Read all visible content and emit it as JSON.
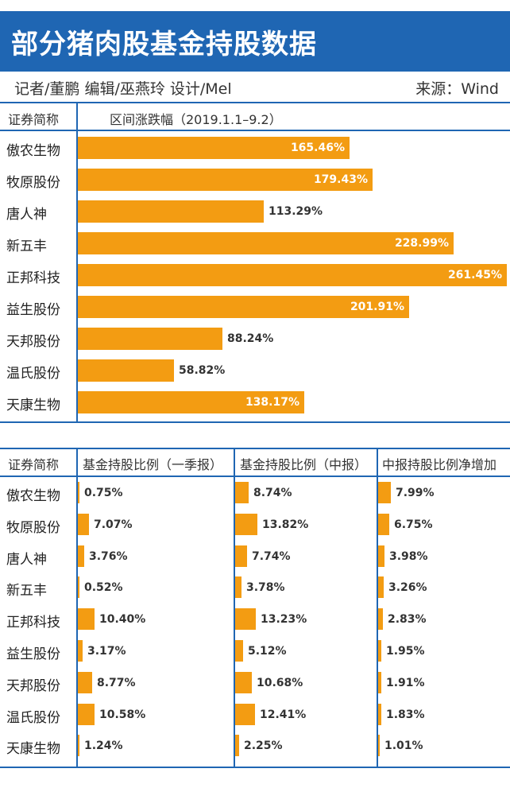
{
  "header": {
    "title": "部分猪肉股基金持股数据",
    "credit": "记者/董鹏  编辑/巫燕玲  设计/Mel",
    "source": "来源：Wind"
  },
  "colors": {
    "title_bg": "#1f66b3",
    "bar": "#f39c12",
    "rule": "#1f66b3"
  },
  "chart_data": [
    {
      "type": "bar",
      "orientation": "horizontal",
      "col_header_name": "证券简称",
      "col_header_value": "区间涨跌幅（2019.1.1–9.2）",
      "categories": [
        "傲农生物",
        "牧原股份",
        "唐人神",
        "新五丰",
        "正邦科技",
        "益生股份",
        "天邦股份",
        "温氏股份",
        "天康生物"
      ],
      "values": [
        165.46,
        179.43,
        113.29,
        228.99,
        261.45,
        201.91,
        88.24,
        58.82,
        138.17
      ],
      "value_labels": [
        "165.46%",
        "179.43%",
        "113.29%",
        "228.99%",
        "261.45%",
        "201.91%",
        "88.24%",
        "58.82%",
        "138.17%"
      ],
      "unit": "%"
    },
    {
      "type": "table",
      "col_header_name": "证券简称",
      "categories": [
        "傲农生物",
        "牧原股份",
        "唐人神",
        "新五丰",
        "正邦科技",
        "益生股份",
        "天邦股份",
        "温氏股份",
        "天康生物"
      ],
      "series": [
        {
          "name": "基金持股比例（一季报）",
          "values": [
            0.75,
            7.07,
            3.76,
            0.52,
            10.4,
            3.17,
            8.77,
            10.58,
            1.24
          ],
          "labels": [
            "0.75%",
            "7.07%",
            "3.76%",
            "0.52%",
            "10.40%",
            "3.17%",
            "8.77%",
            "10.58%",
            "1.24%"
          ]
        },
        {
          "name": "基金持股比例（中报）",
          "values": [
            8.74,
            13.82,
            7.74,
            3.78,
            13.23,
            5.12,
            10.68,
            12.41,
            2.25
          ],
          "labels": [
            "8.74%",
            "13.82%",
            "7.74%",
            "3.78%",
            "13.23%",
            "5.12%",
            "10.68%",
            "12.41%",
            "2.25%"
          ]
        },
        {
          "name": "中报持股比例净增加",
          "values": [
            7.99,
            6.75,
            3.98,
            3.26,
            2.83,
            1.95,
            1.91,
            1.83,
            1.01
          ],
          "labels": [
            "7.99%",
            "6.75%",
            "3.98%",
            "3.26%",
            "2.83%",
            "1.95%",
            "1.91%",
            "1.83%",
            "1.01%"
          ]
        }
      ],
      "unit": "%"
    }
  ]
}
